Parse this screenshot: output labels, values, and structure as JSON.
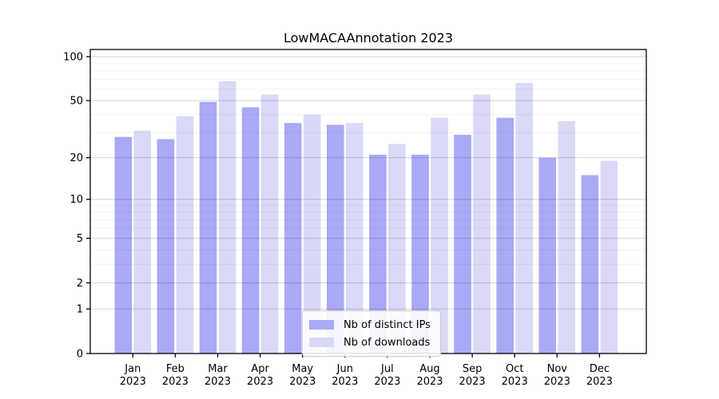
{
  "chart_data": {
    "type": "bar",
    "title": "LowMACAAnnotation 2023",
    "categories": [
      "Jan",
      "Feb",
      "Mar",
      "Apr",
      "May",
      "Jun",
      "Jul",
      "Aug",
      "Sep",
      "Oct",
      "Nov",
      "Dec"
    ],
    "year": "2023",
    "series": [
      {
        "name": "Nb of distinct IPs",
        "color": "#a9a9f7",
        "values": [
          28,
          27,
          49,
          45,
          35,
          34,
          21,
          21,
          29,
          38,
          20,
          15
        ]
      },
      {
        "name": "Nb of downloads",
        "color": "#d9d9f8",
        "values": [
          31,
          39,
          68,
          55,
          40,
          35,
          25,
          38,
          55,
          66,
          36,
          19
        ]
      }
    ],
    "xlabel": "",
    "ylabel": "",
    "yscale": "log1p",
    "yticks": [
      0,
      1,
      2,
      5,
      10,
      20,
      50,
      100
    ],
    "minor_gridlines": [
      3,
      4,
      6,
      7,
      8,
      9,
      30,
      40,
      60,
      70,
      80,
      90
    ],
    "ylim": [
      0,
      112
    ],
    "grid": true,
    "legend_position": "bottom-center",
    "colors": {
      "axis": "#000000",
      "major_grid": "rgba(0,0,0,0.16)",
      "minor_grid": "rgba(0,0,0,0.05)",
      "text": "#000000"
    }
  }
}
